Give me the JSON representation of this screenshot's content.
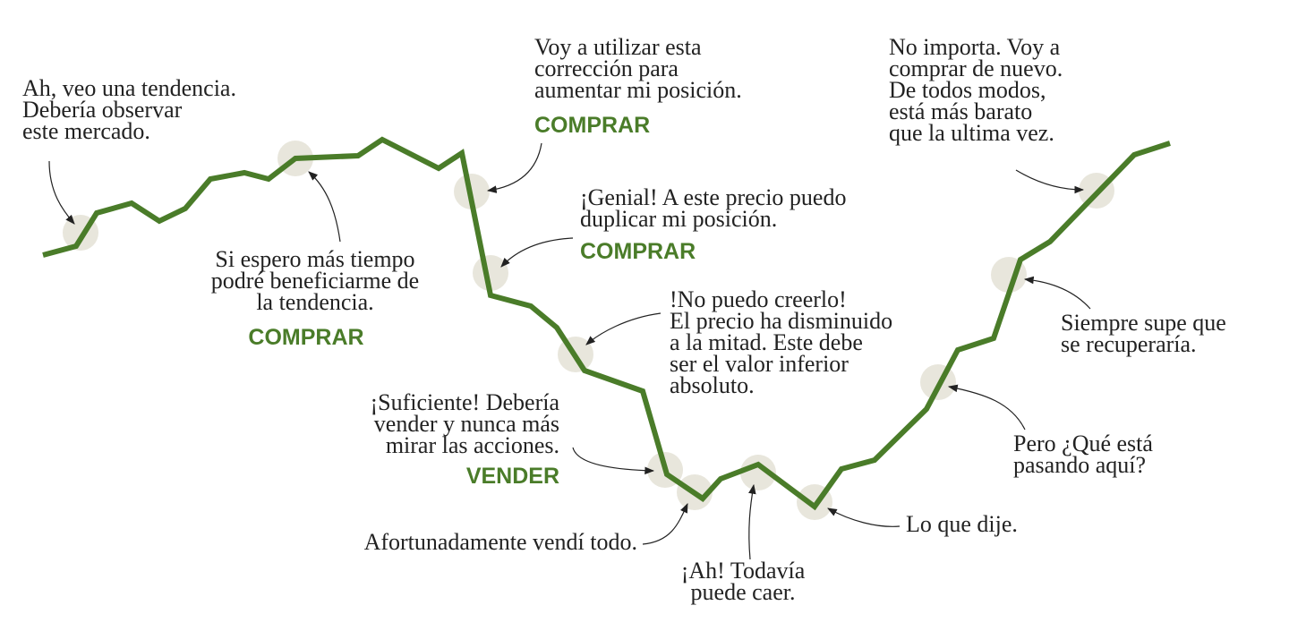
{
  "annotations": [
    {
      "lines": [
        "Ah, veo una tendencia.",
        "Debería observar",
        "este mercado."
      ]
    },
    {
      "lines": [
        "Si espero más tiempo",
        "podré beneficiarme de",
        "la tendencia."
      ],
      "action": "COMPRAR"
    },
    {
      "lines": [
        "Voy a utilizar esta",
        "corrección para",
        "aumentar mi posición."
      ],
      "action": "COMPRAR"
    },
    {
      "lines": [
        "¡Genial! A este precio puedo",
        "duplicar mi posición."
      ],
      "action": "COMPRAR"
    },
    {
      "lines": [
        "!No puedo creerlo!",
        "El precio ha disminuido",
        "a la mitad. Este debe",
        "ser el valor inferior",
        "absoluto."
      ]
    },
    {
      "lines": [
        "¡Suficiente! Debería",
        "vender y nunca más",
        "mirar las acciones."
      ],
      "action": "VENDER"
    },
    {
      "lines": [
        "Afortunadamente vendí todo."
      ]
    },
    {
      "lines": [
        "¡Ah! Todavía",
        "puede caer."
      ]
    },
    {
      "lines": [
        "Lo que dije."
      ]
    },
    {
      "lines": [
        "Pero ¿Qué está",
        "pasando aquí?"
      ]
    },
    {
      "lines": [
        "Siempre supe que",
        "se recuperaría."
      ]
    },
    {
      "lines": [
        "No importa. Voy a",
        "comprar de nuevo.",
        "De todos modos,",
        "está más barato",
        "que la ultima vez."
      ]
    }
  ]
}
